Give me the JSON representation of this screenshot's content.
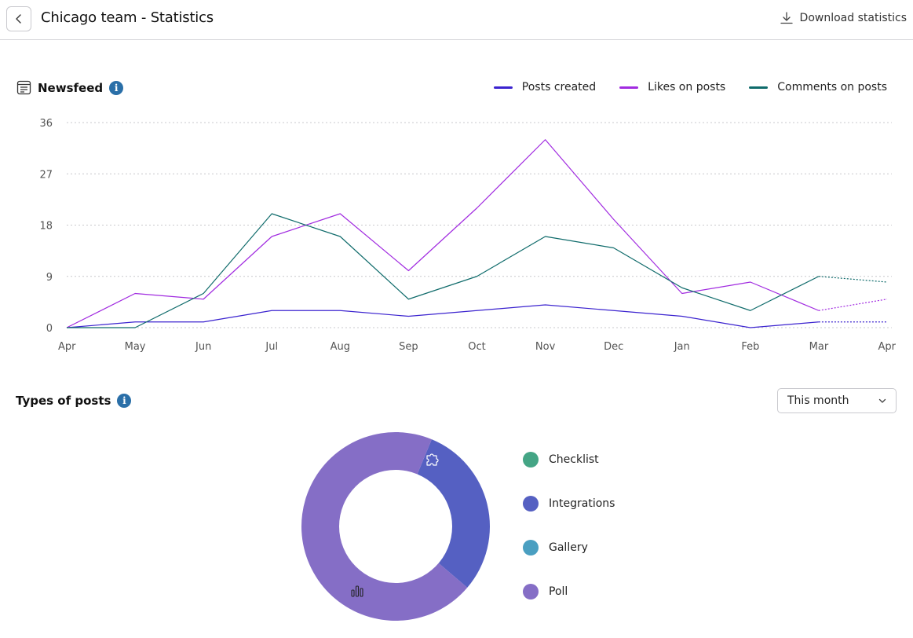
{
  "header": {
    "title": "Chicago team - Statistics",
    "download_label": "Download statistics"
  },
  "newsfeed": {
    "title": "Newsfeed",
    "info": "i"
  },
  "chart_data": {
    "type": "line",
    "categories": [
      "Apr",
      "May",
      "Jun",
      "Jul",
      "Aug",
      "Sep",
      "Oct",
      "Nov",
      "Dec",
      "Jan",
      "Feb",
      "Mar",
      "Apr"
    ],
    "y_ticks": [
      0,
      9,
      18,
      27,
      36
    ],
    "ylim": [
      0,
      36
    ],
    "grid": true,
    "legend_position": "top-right",
    "projected_from_index": 11,
    "series": [
      {
        "name": "Posts created",
        "color": "#3b23cf",
        "values": [
          0,
          1,
          1,
          3,
          3,
          2,
          3,
          4,
          3,
          2,
          0,
          1,
          1
        ]
      },
      {
        "name": "Likes on posts",
        "color": "#a12be0",
        "values": [
          0,
          6,
          5,
          16,
          20,
          10,
          21,
          33,
          19,
          6,
          8,
          3,
          5
        ]
      },
      {
        "name": "Comments on posts",
        "color": "#0f6b6b",
        "values": [
          0,
          0,
          6,
          20,
          16,
          5,
          9,
          16,
          14,
          7,
          3,
          9,
          8
        ]
      }
    ]
  },
  "types": {
    "title": "Types of posts",
    "info": "i",
    "period": "This month",
    "items": [
      {
        "label": "Checklist",
        "color": "#44a585",
        "share": 0
      },
      {
        "label": "Integrations",
        "color": "#5560c2",
        "share": 0.3
      },
      {
        "label": "Gallery",
        "color": "#4a9fc1",
        "share": 0
      },
      {
        "label": "Poll",
        "color": "#856ec6",
        "share": 0.7
      }
    ],
    "icons": [
      "puzzle-icon",
      "bar-chart-icon"
    ]
  }
}
